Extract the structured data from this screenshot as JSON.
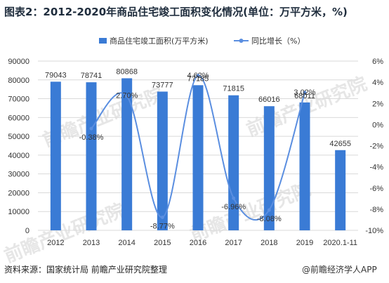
{
  "title": "图表2：2012-2020年商品住宅竣工面积变化情况(单位：万平方米，%)",
  "source": "资料来源：国家统计局 前瞻产业研究院整理",
  "brand": "@前瞻经济学人APP",
  "watermark": "前瞻产业研究院",
  "colors": {
    "bar": "#3a7bd5",
    "line": "#5a8ee0",
    "grid": "#d9d9d9",
    "text": "#333333"
  },
  "chart_data": {
    "type": "bar",
    "categories": [
      "2012",
      "2013",
      "2014",
      "2015",
      "2016",
      "2017",
      "2018",
      "2019",
      "2020.1-11"
    ],
    "series": [
      {
        "name": "商品住宅竣工面积(万平方米)",
        "type": "bar",
        "axis": "left",
        "values": [
          79043,
          78741,
          80868,
          73777,
          77185,
          71815,
          66016,
          68011,
          42655
        ],
        "labels": [
          "79043",
          "78741",
          "80868",
          "73777",
          "77185",
          "71815",
          "66016",
          "68011",
          "42655"
        ]
      },
      {
        "name": "同比增长（%）",
        "type": "line",
        "axis": "right",
        "values": [
          null,
          -0.38,
          2.7,
          -8.77,
          4.62,
          -6.96,
          -8.08,
          3.02,
          null
        ],
        "labels": [
          null,
          "-0.38%",
          "2.70%",
          "-8.77%",
          "4.62%",
          "-6.96%",
          "-8.08%",
          "3.02%",
          null
        ]
      }
    ],
    "ylim": [
      0,
      90000
    ],
    "yticks": [
      "0",
      "10000",
      "20000",
      "30000",
      "40000",
      "50000",
      "60000",
      "70000",
      "80000",
      "90000"
    ],
    "y2lim": [
      -10,
      6
    ],
    "y2ticks": [
      "-10%",
      "-8%",
      "-6%",
      "-4%",
      "-2%",
      "0%",
      "2%",
      "4%",
      "6%"
    ],
    "grid": true,
    "legend": "top"
  }
}
